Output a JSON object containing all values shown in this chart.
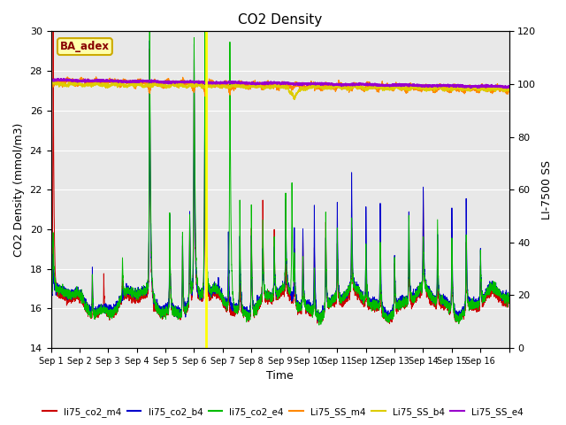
{
  "title": "CO2 Density",
  "ylabel_left": "CO2 Density (mmol/m3)",
  "ylabel_right": "LI-7500 SS",
  "xlabel": "Time",
  "ylim_left": [
    14,
    30
  ],
  "ylim_right": [
    0,
    120
  ],
  "annotation_text": "BA_adex",
  "background_color": "#e8e8e8",
  "series_colors": {
    "li75_co2_m4": "#cc0000",
    "li75_co2_b4": "#0000cc",
    "li75_co2_e4": "#00bb00",
    "Li75_SS_m4": "#ff8800",
    "Li75_SS_b4": "#ddcc00",
    "Li75_SS_e4": "#9900cc"
  },
  "x_tick_labels": [
    "Sep 1",
    "Sep 2",
    "Sep 3",
    "Sep 4",
    "Sep 5",
    "Sep 6",
    "Sep 7",
    "Sep 8",
    "Sep 9",
    "Sep 10",
    "Sep 11",
    "Sep 12",
    "Sep 13",
    "Sep 14",
    "Sep 15",
    "Sep 16"
  ],
  "n_days": 16,
  "vertical_line_day": 5.42,
  "vertical_line_color": "#ffff00",
  "left_ticks": [
    14,
    16,
    18,
    20,
    22,
    24,
    26,
    28,
    30
  ],
  "right_ticks": [
    0,
    20,
    40,
    60,
    80,
    100,
    120
  ]
}
